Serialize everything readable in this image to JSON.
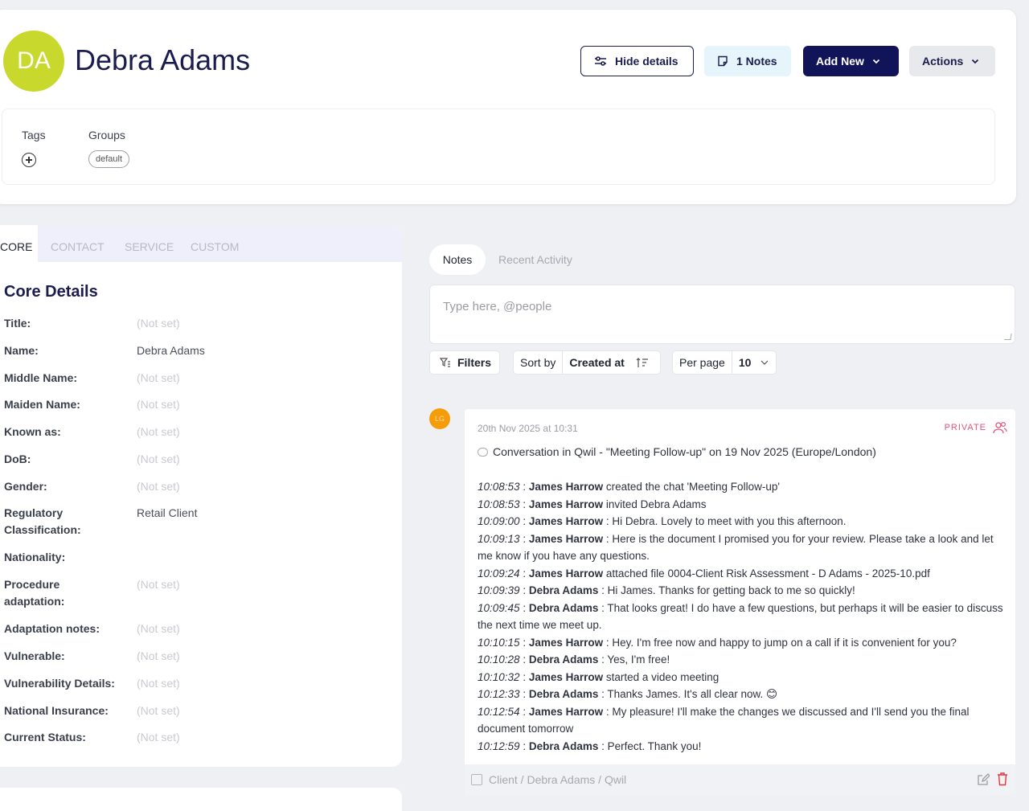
{
  "header": {
    "avatar_initials": "DA",
    "avatar_color": "#c9d82c",
    "name": "Debra Adams",
    "buttons": {
      "hide_details": "Hide details",
      "notes": "1 Notes",
      "add_new": "Add New",
      "actions": "Actions"
    },
    "tags_label": "Tags",
    "groups_label": "Groups",
    "groups": [
      "default"
    ]
  },
  "left_panel": {
    "tabs": [
      "CORE",
      "CONTACT",
      "SERVICE",
      "CUSTOM"
    ],
    "active_tab": "CORE",
    "section_title": "Core Details",
    "fields": [
      {
        "label": "Title:",
        "value": "(Not set)"
      },
      {
        "label": "Name:",
        "value": "Debra Adams"
      },
      {
        "label": "Middle Name:",
        "value": "(Not set)"
      },
      {
        "label": "Maiden Name:",
        "value": "(Not set)"
      },
      {
        "label": "Known as:",
        "value": "(Not set)"
      },
      {
        "label": "DoB:",
        "value": "(Not set)"
      },
      {
        "label": "Gender:",
        "value": "(Not set)"
      },
      {
        "label": "Regulatory Classification:",
        "value": "Retail Client"
      },
      {
        "label": "Nationality:",
        "value": ""
      },
      {
        "label": "Procedure adaptation:",
        "value": "(Not set)"
      },
      {
        "label": "Adaptation notes:",
        "value": "(Not set)"
      },
      {
        "label": "Vulnerable:",
        "value": "(Not set)"
      },
      {
        "label": "Vulnerability Details:",
        "value": "(Not set)"
      },
      {
        "label": "National Insurance:",
        "value": "(Not set)"
      },
      {
        "label": "Current Status:",
        "value": "(Not set)"
      }
    ]
  },
  "right_panel": {
    "tabs": {
      "notes": "Notes",
      "activity": "Recent Activity"
    },
    "input_placeholder": "Type here, @people",
    "filters_label": "Filters",
    "sort_by_label": "Sort by",
    "sort_value": "Created at",
    "per_page_label": "Per page",
    "per_page_value": "10",
    "note": {
      "author_initials": "LG",
      "date": "20th Nov 2025 at 10:31",
      "badge": "PRIVATE",
      "badge_color": "#e0557b",
      "title": "Conversation in Qwil - \"Meeting Follow-up\" on 19 Nov 2025 (Europe/London)",
      "entries": [
        {
          "time": "10:08:53",
          "sep": " : ",
          "who": "James Harrow",
          "text": " created the chat 'Meeting Follow-up'"
        },
        {
          "time": "10:08:53",
          "sep": " : ",
          "who": "James Harrow",
          "text": " invited Debra Adams"
        },
        {
          "time": "10:09:00",
          "sep": " : ",
          "who": "James Harrow",
          "text": " : Hi Debra. Lovely to meet with you this afternoon."
        },
        {
          "time": "10:09:13",
          "sep": " : ",
          "who": "James Harrow",
          "text": " : Here is the document I promised you for your review. Please take a look and let me know if you have any questions."
        },
        {
          "time": "10:09:24",
          "sep": " : ",
          "who": "James Harrow",
          "text": " attached file 0004-Client Risk Assessment - D Adams - 2025-10.pdf"
        },
        {
          "time": "10:09:39",
          "sep": " : ",
          "who": "Debra Adams",
          "text": " : Hi James. Thanks for getting back to me so quickly!"
        },
        {
          "time": "10:09:45",
          "sep": " : ",
          "who": "Debra Adams",
          "text": " : That looks great! I do have a few questions, but perhaps it will be easier to discuss the next time we meet up."
        },
        {
          "time": "10:10:15",
          "sep": " : ",
          "who": "James Harrow",
          "text": " : Hey. I'm free now and happy to jump on a call if it is convenient for you?"
        },
        {
          "time": "10:10:28",
          "sep": " : ",
          "who": "Debra Adams",
          "text": " : Yes, I'm free!"
        },
        {
          "time": "10:10:32",
          "sep": " : ",
          "who": "James Harrow",
          "text": " started a video meeting"
        },
        {
          "time": "10:12:33",
          "sep": " : ",
          "who": "Debra Adams",
          "text": " : Thanks James. It's all clear now. 😊"
        },
        {
          "time": "10:12:54",
          "sep": " : ",
          "who": "James Harrow",
          "text": " : My pleasure! I'll make the changes we discussed and I'll send you the final document tomorrow"
        },
        {
          "time": "10:12:59",
          "sep": " : ",
          "who": "Debra Adams",
          "text": " : Perfect. Thank you!"
        }
      ],
      "footer_path": "Client / Debra Adams / Qwil"
    }
  }
}
